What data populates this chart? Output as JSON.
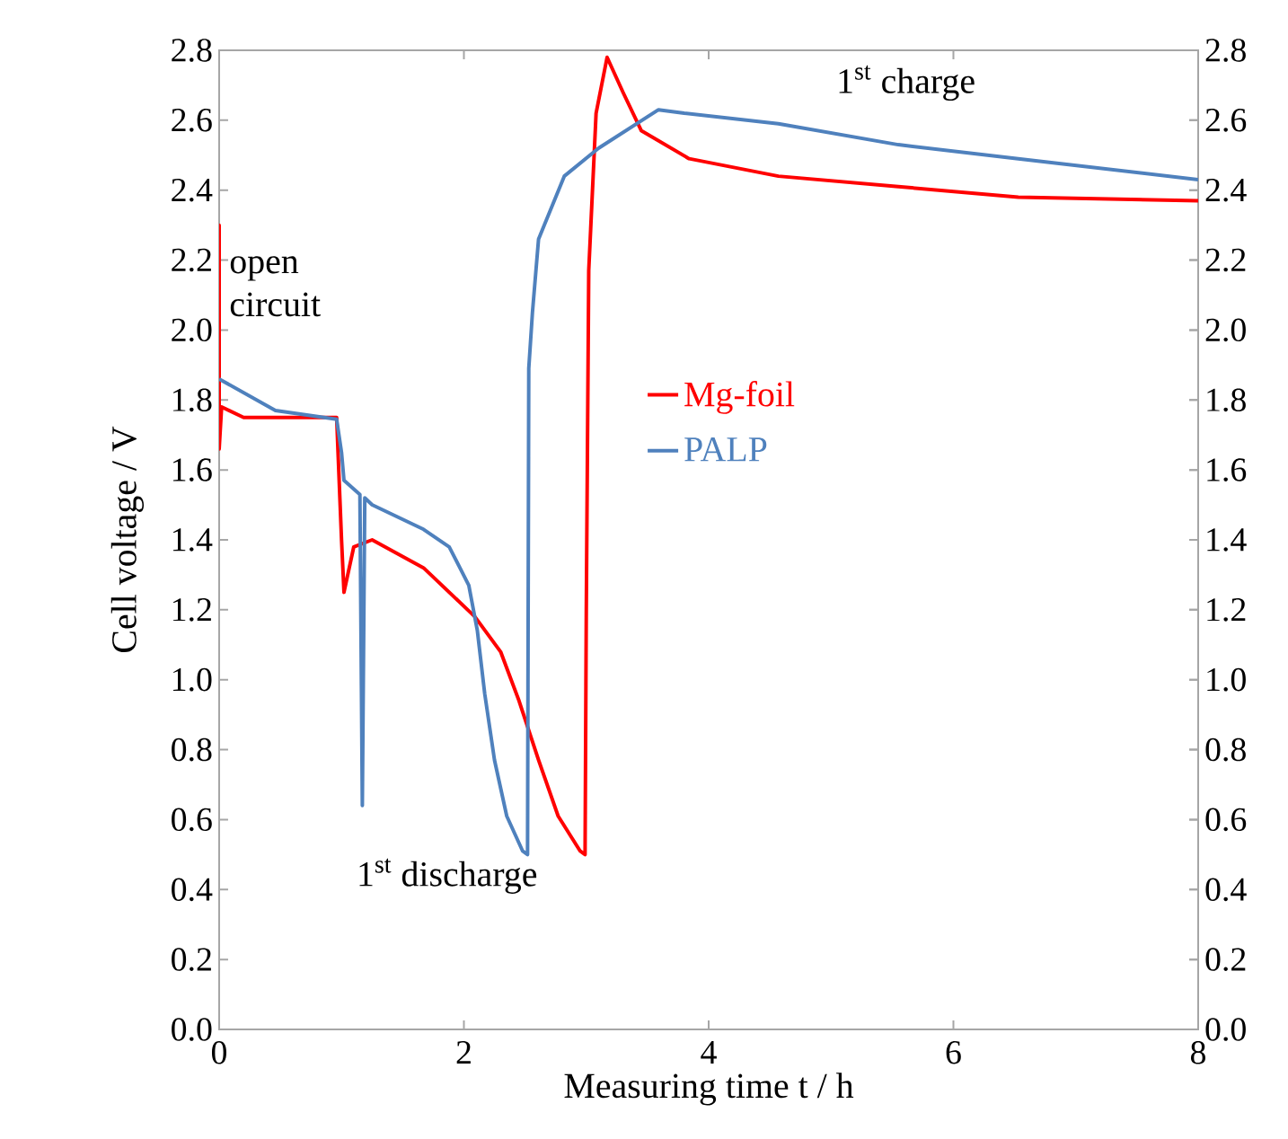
{
  "chart_data": {
    "type": "line",
    "xlabel": "Measuring time t / h",
    "ylabel": "Cell  voltage /  V",
    "xlim": [
      0,
      8
    ],
    "xticks": [
      0,
      2,
      4,
      6,
      8
    ],
    "ylim": [
      0,
      2.8
    ],
    "yticks": [
      {
        "value": 0,
        "label": "0.0"
      },
      0.2,
      0.4,
      0.6,
      0.8,
      {
        "value": 1,
        "label": "1.0"
      },
      1.2,
      1.4,
      1.6,
      1.8,
      {
        "value": 2,
        "label": "2.0"
      },
      2.2,
      2.4,
      2.6,
      2.8
    ],
    "y2lim": [
      0,
      2.8
    ],
    "y2ticks": [
      {
        "value": 0,
        "label": "0.0"
      },
      0.2,
      0.4,
      0.6,
      0.8,
      {
        "value": 1,
        "label": "1.0"
      },
      1.2,
      1.4,
      1.6,
      1.8,
      {
        "value": 2,
        "label": "2.0"
      },
      2.2,
      2.4,
      2.6,
      2.8
    ],
    "legend": "center",
    "grid": false,
    "annotations": [
      "open circuit",
      "1$^{st}$ discharge",
      "1$^{st}$ charge"
    ],
    "series": [
      {
        "name": "Mg-foil",
        "color": "#ff0000",
        "x": [
          0,
          0,
          0,
          0.02,
          0.2,
          0.96,
          1.0,
          1.02,
          1.1,
          1.25,
          1.67,
          2.09,
          2.3,
          2.45,
          2.61,
          2.77,
          2.95,
          2.99,
          3.0,
          3.02,
          3.08,
          3.17,
          3.3,
          3.45,
          3.84,
          4.57,
          5.55,
          6.53,
          8
        ],
        "values": [
          1.79,
          2.3,
          1.66,
          1.78,
          1.75,
          1.75,
          1.4,
          1.25,
          1.38,
          1.4,
          1.32,
          1.18,
          1.08,
          0.94,
          0.77,
          0.61,
          0.51,
          0.5,
          1.2,
          2.17,
          2.62,
          2.78,
          2.68,
          2.57,
          2.49,
          2.44,
          2.41,
          2.38,
          2.37
        ]
      },
      {
        "name": "PALP",
        "color": "#4f81bd",
        "x": [
          0,
          0.46,
          0.96,
          1.0,
          1.02,
          1.15,
          1.17,
          1.19,
          1.25,
          1.67,
          1.88,
          2.04,
          2.11,
          2.17,
          2.25,
          2.35,
          2.48,
          2.52,
          2.53,
          2.56,
          2.61,
          2.82,
          3.1,
          3.59,
          3.8,
          4.57,
          5.55,
          6.53,
          8
        ],
        "values": [
          1.86,
          1.77,
          1.745,
          1.65,
          1.57,
          1.53,
          0.64,
          1.52,
          1.5,
          1.43,
          1.38,
          1.27,
          1.14,
          0.96,
          0.77,
          0.61,
          0.51,
          0.5,
          1.89,
          2.05,
          2.26,
          2.44,
          2.52,
          2.63,
          2.62,
          2.59,
          2.53,
          2.49,
          2.43
        ]
      }
    ]
  }
}
